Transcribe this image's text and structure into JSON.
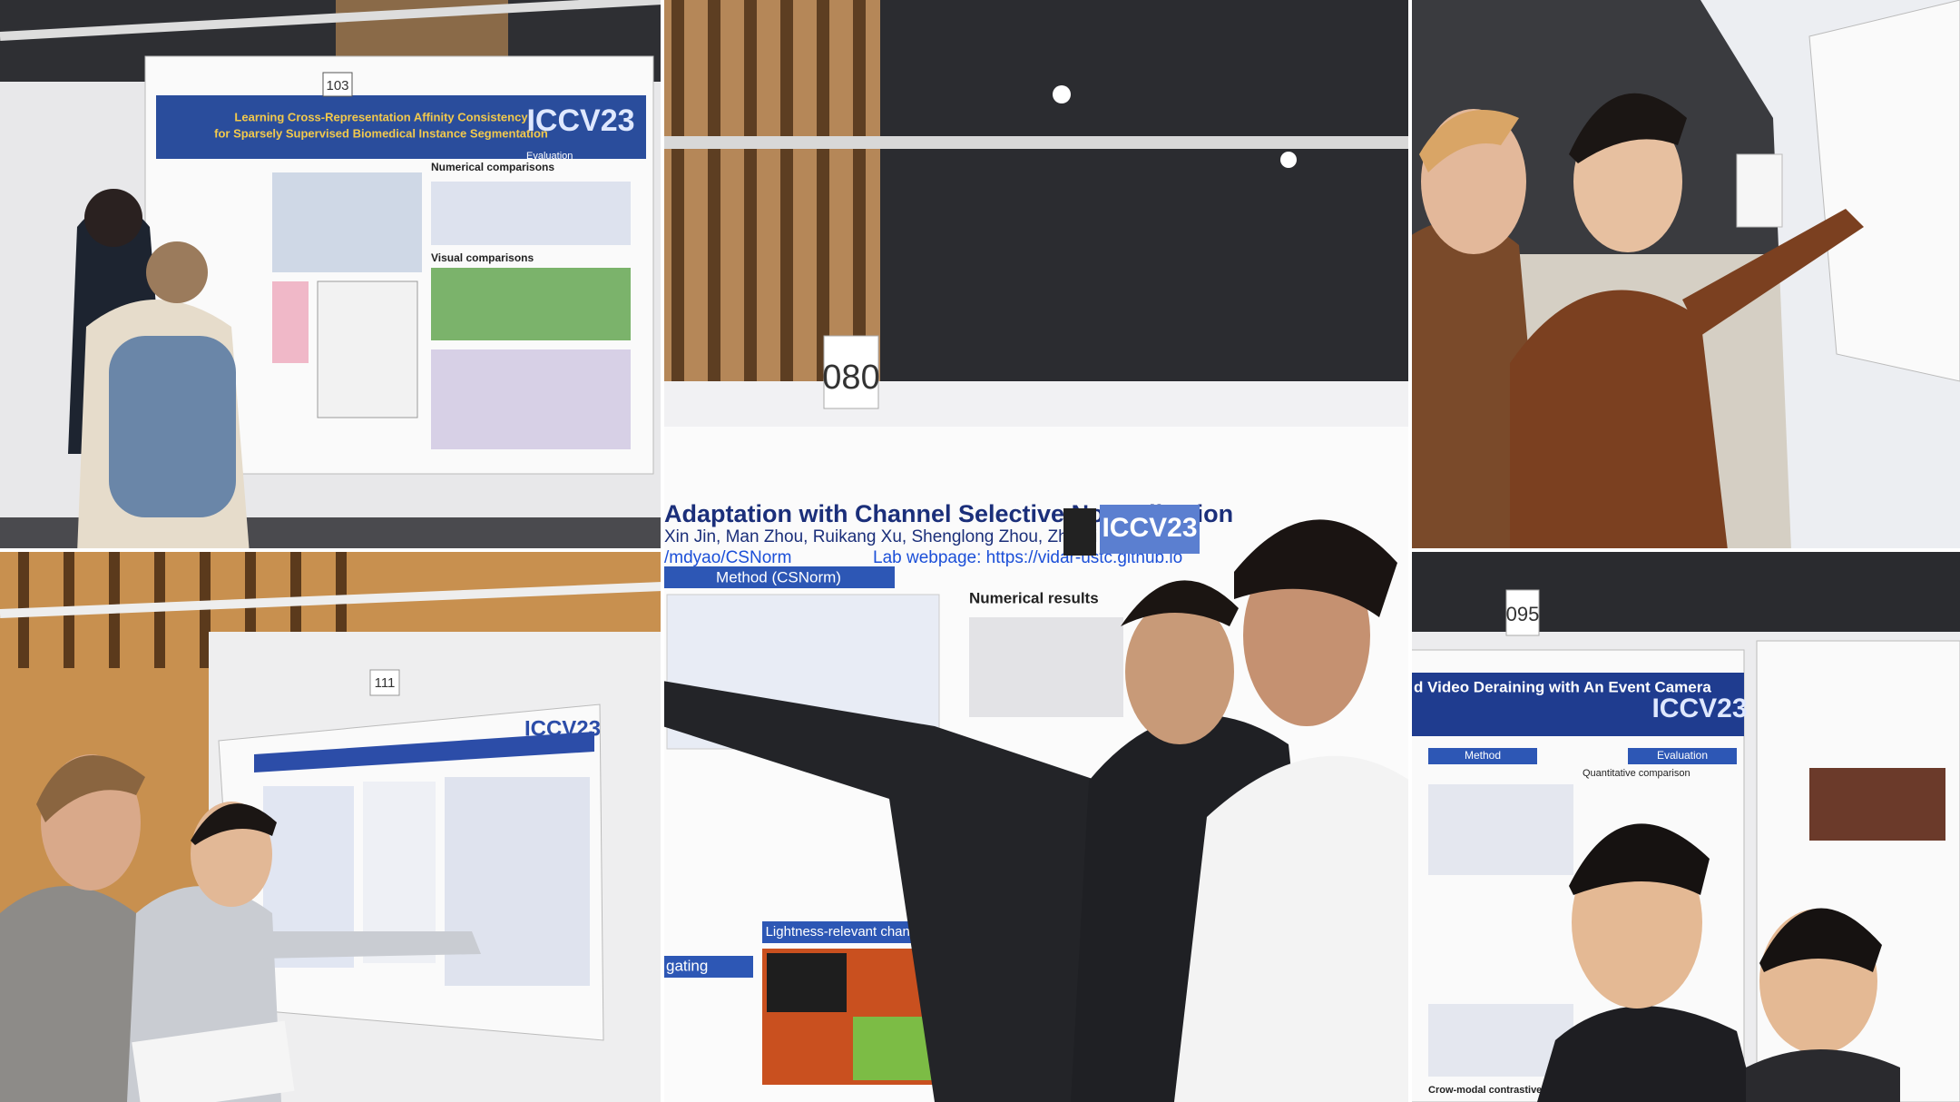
{
  "panels": [
    {
      "board": "103",
      "poster": {
        "title_line1": "Learning Cross-Representation Affinity Consistency",
        "title_line2": "for Sparsely Supervised Biomedical Instance Segmentation",
        "logo": "ICCV23",
        "sections": [
          "Evaluation",
          "Numerical comparisons",
          "Visual comparisons"
        ]
      }
    },
    {
      "board": "080",
      "poster": {
        "title": "Adaptation with Channel Selective Normalization",
        "authors": "Xin Jin, Man Zhou, Ruikang Xu, Shenglong Zhou, Zhiwei Xiong",
        "code": "/mdyao/CSNorm",
        "lab": "Lab webpage: https://vidar-ustc.github.io",
        "logo": "ICCV23",
        "sections": [
          "Method (CSNorm)",
          "Numerical results",
          "Lightness-relevant channels",
          "gating"
        ]
      }
    },
    {
      "board": "111",
      "poster": {
        "logo": "ICCV23"
      }
    },
    {
      "board": "095",
      "poster": {
        "title": "d Video Deraining with An Event Camera",
        "logo": "ICCV23",
        "sections": [
          "Method",
          "Evaluation",
          "Quantitative comparison",
          "Crow-modal contrastive learning"
        ]
      }
    }
  ]
}
